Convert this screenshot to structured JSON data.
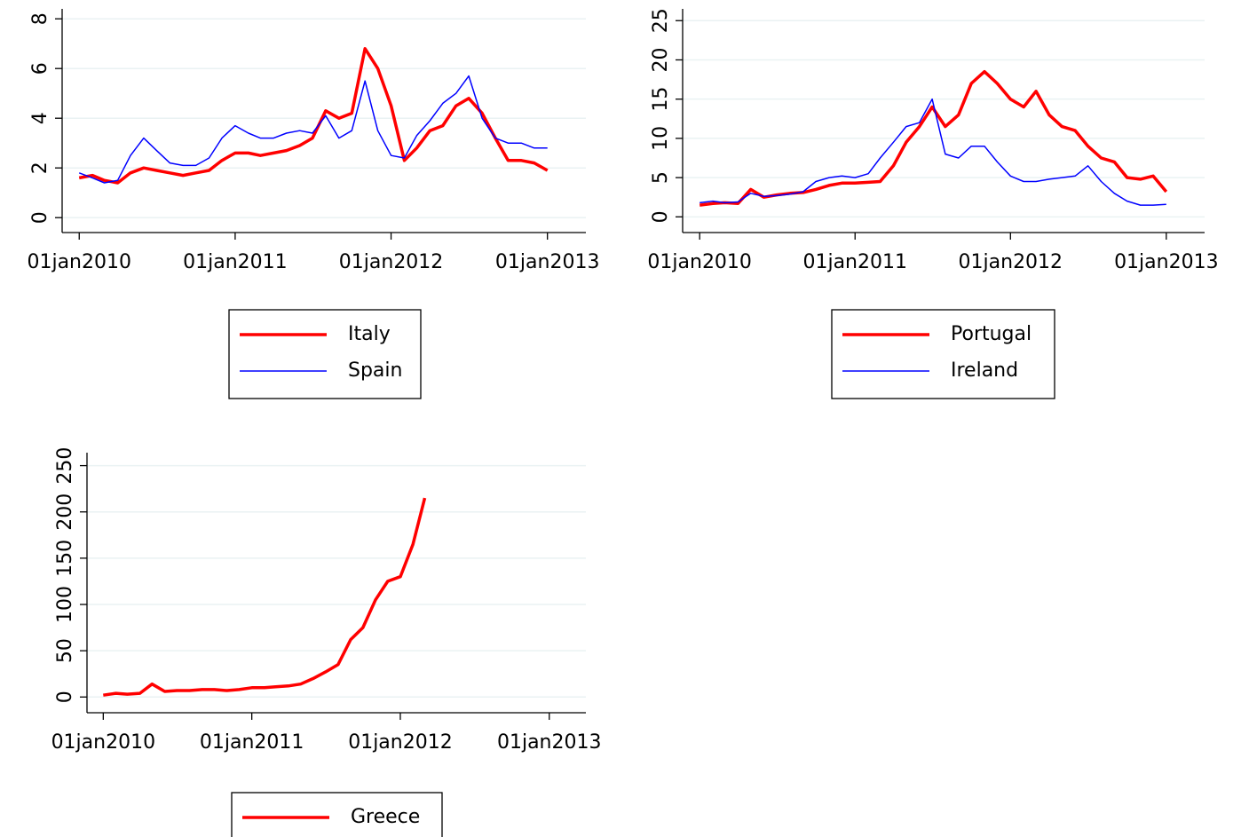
{
  "chart_data": [
    {
      "type": "line",
      "legend": "bottom",
      "grid": true,
      "x": [
        "2010-01-01",
        "2010-02-01",
        "2010-03-01",
        "2010-04-01",
        "2010-05-01",
        "2010-06-01",
        "2010-07-01",
        "2010-08-01",
        "2010-09-01",
        "2010-10-01",
        "2010-11-01",
        "2010-12-01",
        "2011-01-01",
        "2011-02-01",
        "2011-03-01",
        "2011-04-01",
        "2011-05-01",
        "2011-06-01",
        "2011-07-01",
        "2011-08-01",
        "2011-09-01",
        "2011-10-01",
        "2011-11-01",
        "2011-12-01",
        "2012-01-01",
        "2012-02-01",
        "2012-03-01",
        "2012-04-01",
        "2012-05-01",
        "2012-06-01",
        "2012-07-01",
        "2012-08-01",
        "2012-09-01",
        "2012-10-01",
        "2012-11-01",
        "2012-12-01",
        "2013-01-01"
      ],
      "series": [
        {
          "name": "Italy",
          "color": "#ff0000",
          "values": [
            1.6,
            1.7,
            1.5,
            1.4,
            1.8,
            2.0,
            1.9,
            1.8,
            1.7,
            1.8,
            1.9,
            2.3,
            2.6,
            2.6,
            2.5,
            2.6,
            2.7,
            2.9,
            3.2,
            4.3,
            4.0,
            4.2,
            6.8,
            6.0,
            4.5,
            2.3,
            2.8,
            3.5,
            3.7,
            4.5,
            4.8,
            4.2,
            3.2,
            2.3,
            2.3,
            2.2,
            1.9
          ]
        },
        {
          "name": "Spain",
          "color": "#0000ff",
          "values": [
            1.8,
            1.6,
            1.4,
            1.5,
            2.5,
            3.2,
            2.7,
            2.2,
            2.1,
            2.1,
            2.4,
            3.2,
            3.7,
            3.4,
            3.2,
            3.2,
            3.4,
            3.5,
            3.4,
            4.1,
            3.2,
            3.5,
            5.5,
            3.5,
            2.5,
            2.4,
            3.3,
            3.9,
            4.6,
            5.0,
            5.7,
            4.0,
            3.2,
            3.0,
            3.0,
            2.8,
            2.8
          ]
        }
      ],
      "xlim": [
        "2009-11-22",
        "2013-04-01"
      ],
      "xticks": [
        {
          "value": "2010-01-01",
          "label": "01jan2010"
        },
        {
          "value": "2011-01-01",
          "label": "01jan2011"
        },
        {
          "value": "2012-01-01",
          "label": "01jan2012"
        },
        {
          "value": "2013-01-01",
          "label": "01jan2013"
        }
      ],
      "ylim": [
        -0.6,
        8.4
      ],
      "yticks": [
        0,
        2,
        4,
        6,
        8
      ]
    },
    {
      "type": "line",
      "legend": "bottom",
      "grid": true,
      "x": [
        "2010-01-01",
        "2010-02-01",
        "2010-03-01",
        "2010-04-01",
        "2010-05-01",
        "2010-06-01",
        "2010-07-01",
        "2010-08-01",
        "2010-09-01",
        "2010-10-01",
        "2010-11-01",
        "2010-12-01",
        "2011-01-01",
        "2011-02-01",
        "2011-03-01",
        "2011-04-01",
        "2011-05-01",
        "2011-06-01",
        "2011-07-01",
        "2011-08-01",
        "2011-09-01",
        "2011-10-01",
        "2011-11-01",
        "2011-12-01",
        "2012-01-01",
        "2012-02-01",
        "2012-03-01",
        "2012-04-01",
        "2012-05-01",
        "2012-06-01",
        "2012-07-01",
        "2012-08-01",
        "2012-09-01",
        "2012-10-01",
        "2012-11-01",
        "2012-12-01",
        "2013-01-01"
      ],
      "series": [
        {
          "name": "Portugal",
          "color": "#ff0000",
          "values": [
            1.5,
            1.7,
            1.8,
            1.7,
            3.5,
            2.5,
            2.8,
            3.0,
            3.1,
            3.5,
            4.0,
            4.3,
            4.3,
            4.4,
            4.5,
            6.5,
            9.5,
            11.5,
            14,
            11.5,
            13,
            17,
            18.5,
            17,
            15,
            14,
            16,
            13,
            11.5,
            11,
            9,
            7.5,
            7,
            5,
            4.8,
            5.2,
            3.2
          ]
        },
        {
          "name": "Ireland",
          "color": "#0000ff",
          "values": [
            1.8,
            2.0,
            1.8,
            1.9,
            3.0,
            2.6,
            2.7,
            2.9,
            3.2,
            4.5,
            5.0,
            5.2,
            5.0,
            5.5,
            7.5,
            9.5,
            11.5,
            12,
            15,
            8,
            7.5,
            9,
            9,
            7,
            5.2,
            4.5,
            4.5,
            4.8,
            5.0,
            5.2,
            6.5,
            4.5,
            3.0,
            2.0,
            1.5,
            1.5,
            1.6
          ]
        }
      ],
      "xlim": [
        "2009-11-22",
        "2013-04-01"
      ],
      "xticks": [
        {
          "value": "2010-01-01",
          "label": "01jan2010"
        },
        {
          "value": "2011-01-01",
          "label": "01jan2011"
        },
        {
          "value": "2012-01-01",
          "label": "01jan2012"
        },
        {
          "value": "2013-01-01",
          "label": "01jan2013"
        }
      ],
      "ylim": [
        -2,
        26.5
      ],
      "yticks": [
        0,
        5,
        10,
        15,
        20,
        25
      ]
    },
    {
      "type": "line",
      "legend": "bottom",
      "grid": true,
      "x": [
        "2010-01-01",
        "2010-02-01",
        "2010-03-01",
        "2010-04-01",
        "2010-05-01",
        "2010-06-01",
        "2010-07-01",
        "2010-08-01",
        "2010-09-01",
        "2010-10-01",
        "2010-11-01",
        "2010-12-01",
        "2011-01-01",
        "2011-02-01",
        "2011-03-01",
        "2011-04-01",
        "2011-05-01",
        "2011-06-01",
        "2011-07-01",
        "2011-08-01",
        "2011-09-01",
        "2011-10-01",
        "2011-11-01",
        "2011-12-01",
        "2012-01-01",
        "2012-02-01",
        "2012-03-01"
      ],
      "series": [
        {
          "name": "Greece",
          "color": "#ff0000",
          "values": [
            2,
            4,
            3,
            4,
            14,
            6,
            7,
            7,
            8,
            8,
            7,
            8,
            10,
            10,
            11,
            12,
            14,
            20,
            27,
            35,
            62,
            75,
            105,
            125,
            130,
            165,
            215
          ]
        }
      ],
      "xlim": [
        "2009-11-22",
        "2013-04-01"
      ],
      "xticks": [
        {
          "value": "2010-01-01",
          "label": "01jan2010"
        },
        {
          "value": "2011-01-01",
          "label": "01jan2011"
        },
        {
          "value": "2012-01-01",
          "label": "01jan2012"
        },
        {
          "value": "2013-01-01",
          "label": "01jan2013"
        }
      ],
      "ylim": [
        -17,
        264
      ],
      "yticks": [
        0,
        50,
        100,
        150,
        200,
        250
      ]
    }
  ]
}
